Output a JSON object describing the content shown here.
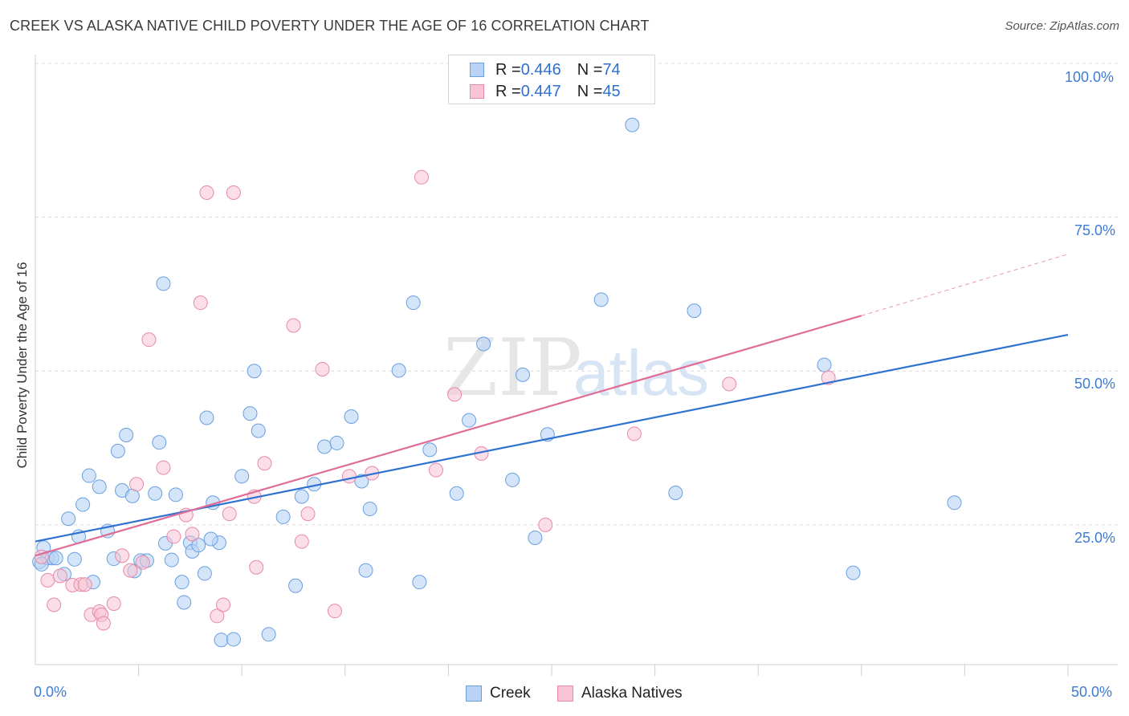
{
  "header": {
    "title": "CREEK VS ALASKA NATIVE CHILD POVERTY UNDER THE AGE OF 16 CORRELATION CHART",
    "source": "Source: ZipAtlas.com"
  },
  "watermark": {
    "zip": "ZIP",
    "atlas": "atlas"
  },
  "legend": {
    "creek": {
      "r_label": "R = ",
      "r_value": "0.446",
      "n_label": "N = ",
      "n_value": "74",
      "name": "Creek"
    },
    "alaska": {
      "r_label": "R = ",
      "r_value": "0.447",
      "n_label": "N = ",
      "n_value": "45",
      "name": "Alaska Natives"
    }
  },
  "axes": {
    "x_min_label": "0.0%",
    "x_max_label": "50.0%",
    "y_ticks": [
      "100.0%",
      "75.0%",
      "50.0%",
      "25.0%"
    ],
    "y_label": "Child Poverty Under the Age of 16"
  },
  "colors": {
    "creek_fill": "#b8d3f5",
    "creek_stroke": "#6a9fe0",
    "creek_line": "#2f72d0",
    "alaska_fill": "#f8c3d3",
    "alaska_stroke": "#e889a8",
    "alaska_line": "#e06d97",
    "grid": "#dcdcdc",
    "tick_text": "#3d7bd4"
  },
  "chart_data": {
    "type": "scatter",
    "title": "CREEK VS ALASKA NATIVE CHILD POVERTY UNDER THE AGE OF 16 CORRELATION CHART",
    "xlabel": "",
    "ylabel": "Child Poverty Under the Age of 16",
    "xlim": [
      0,
      50
    ],
    "ylim": [
      0,
      102
    ],
    "grid": true,
    "legend_position": "top-center",
    "series": [
      {
        "name": "Creek",
        "r": 0.446,
        "n": 74,
        "trend": {
          "x": [
            0,
            50
          ],
          "y": [
            22.3,
            55.9
          ]
        },
        "points": [
          [
            0.2,
            19.0
          ],
          [
            0.4,
            21.3
          ],
          [
            0.6,
            19.6
          ],
          [
            0.8,
            19.6
          ],
          [
            1.0,
            19.6
          ],
          [
            1.4,
            17.0
          ],
          [
            1.6,
            26.0
          ],
          [
            1.9,
            19.4
          ],
          [
            2.1,
            23.1
          ],
          [
            2.3,
            28.3
          ],
          [
            2.6,
            33.0
          ],
          [
            2.8,
            15.7
          ],
          [
            3.1,
            31.2
          ],
          [
            3.5,
            24.0
          ],
          [
            3.8,
            19.5
          ],
          [
            4.0,
            37.0
          ],
          [
            4.2,
            30.6
          ],
          [
            4.4,
            39.6
          ],
          [
            4.7,
            29.7
          ],
          [
            4.8,
            17.5
          ],
          [
            5.1,
            19.2
          ],
          [
            5.4,
            19.2
          ],
          [
            5.8,
            30.1
          ],
          [
            6.0,
            38.4
          ],
          [
            6.2,
            64.2
          ],
          [
            6.3,
            22.0
          ],
          [
            6.6,
            19.3
          ],
          [
            6.8,
            29.9
          ],
          [
            7.1,
            15.7
          ],
          [
            7.2,
            12.4
          ],
          [
            7.5,
            22.1
          ],
          [
            7.6,
            20.7
          ],
          [
            7.9,
            21.7
          ],
          [
            8.2,
            17.1
          ],
          [
            8.3,
            42.4
          ],
          [
            8.6,
            28.6
          ],
          [
            8.9,
            22.1
          ],
          [
            9.0,
            6.3
          ],
          [
            9.6,
            6.4
          ],
          [
            10.0,
            32.9
          ],
          [
            10.4,
            43.1
          ],
          [
            10.6,
            50.0
          ],
          [
            10.8,
            40.3
          ],
          [
            11.3,
            7.2
          ],
          [
            12.0,
            26.3
          ],
          [
            12.6,
            15.1
          ],
          [
            12.9,
            29.6
          ],
          [
            13.5,
            31.6
          ],
          [
            14.0,
            37.7
          ],
          [
            14.6,
            38.3
          ],
          [
            15.3,
            42.6
          ],
          [
            15.8,
            32.1
          ],
          [
            16.0,
            17.6
          ],
          [
            16.2,
            27.6
          ],
          [
            17.6,
            50.1
          ],
          [
            18.3,
            61.1
          ],
          [
            18.6,
            15.7
          ],
          [
            19.1,
            37.2
          ],
          [
            20.4,
            30.1
          ],
          [
            21.0,
            42.0
          ],
          [
            21.7,
            54.4
          ],
          [
            23.1,
            32.3
          ],
          [
            23.6,
            49.4
          ],
          [
            24.2,
            22.9
          ],
          [
            24.8,
            39.7
          ],
          [
            27.4,
            61.6
          ],
          [
            28.9,
            90.0
          ],
          [
            31.0,
            30.2
          ],
          [
            31.9,
            59.8
          ],
          [
            38.2,
            51.0
          ],
          [
            39.6,
            17.2
          ],
          [
            44.5,
            28.6
          ],
          [
            0.3,
            18.6
          ],
          [
            8.5,
            22.7
          ]
        ]
      },
      {
        "name": "Alaska Natives",
        "r": 0.447,
        "n": 45,
        "trend": {
          "x": [
            0,
            40
          ],
          "y": [
            20.0,
            59.0
          ],
          "dashed_to": {
            "x": 50,
            "y": 69.0
          }
        },
        "points": [
          [
            0.3,
            19.8
          ],
          [
            0.6,
            16.0
          ],
          [
            0.9,
            12.0
          ],
          [
            1.2,
            16.7
          ],
          [
            1.8,
            15.2
          ],
          [
            2.2,
            15.3
          ],
          [
            2.4,
            15.3
          ],
          [
            2.7,
            10.4
          ],
          [
            3.1,
            10.9
          ],
          [
            3.2,
            10.4
          ],
          [
            3.3,
            9.0
          ],
          [
            3.8,
            12.2
          ],
          [
            4.2,
            20.0
          ],
          [
            4.6,
            17.6
          ],
          [
            4.9,
            31.6
          ],
          [
            5.2,
            18.9
          ],
          [
            5.5,
            55.1
          ],
          [
            6.2,
            34.3
          ],
          [
            6.7,
            23.1
          ],
          [
            7.3,
            26.6
          ],
          [
            7.6,
            23.5
          ],
          [
            8.0,
            61.1
          ],
          [
            8.3,
            79.0
          ],
          [
            8.8,
            10.2
          ],
          [
            9.1,
            12.0
          ],
          [
            9.4,
            26.8
          ],
          [
            9.6,
            79.0
          ],
          [
            10.6,
            29.6
          ],
          [
            10.7,
            18.1
          ],
          [
            11.1,
            35.0
          ],
          [
            12.5,
            57.4
          ],
          [
            12.9,
            22.3
          ],
          [
            13.2,
            26.8
          ],
          [
            13.9,
            50.3
          ],
          [
            14.5,
            11.0
          ],
          [
            15.2,
            32.9
          ],
          [
            16.3,
            33.4
          ],
          [
            18.7,
            81.5
          ],
          [
            19.4,
            33.9
          ],
          [
            20.3,
            46.2
          ],
          [
            21.6,
            36.6
          ],
          [
            24.7,
            25.0
          ],
          [
            29.0,
            39.8
          ],
          [
            33.6,
            47.9
          ],
          [
            38.4,
            48.9
          ]
        ]
      }
    ]
  }
}
